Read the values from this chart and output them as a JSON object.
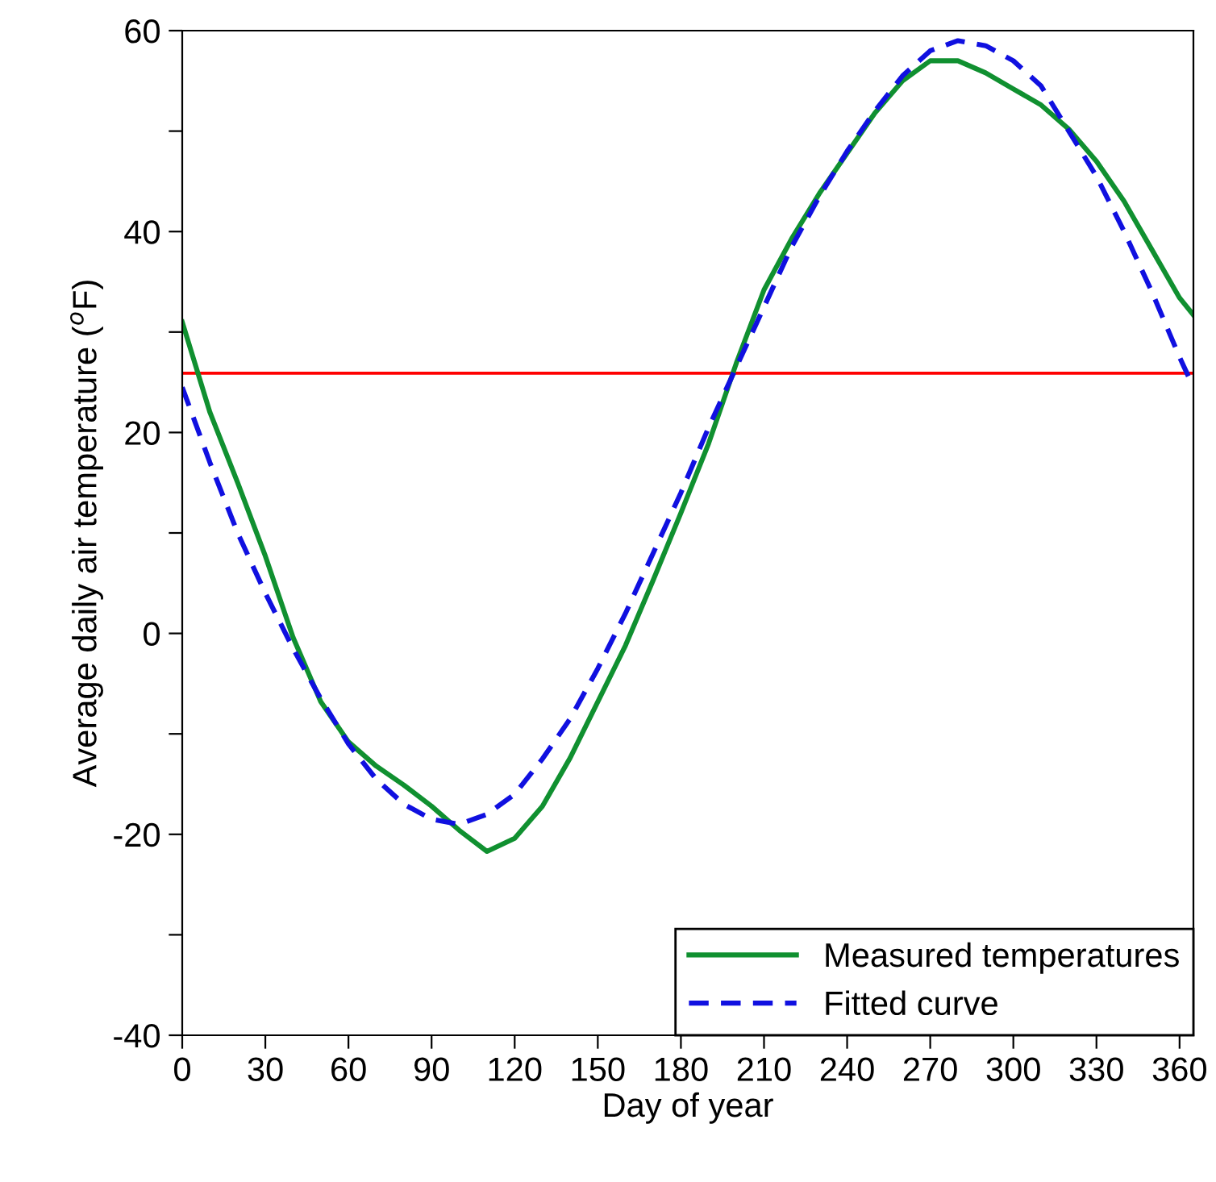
{
  "chart_data": {
    "type": "line",
    "xlabel": "Day of year",
    "ylabel": "Average daily air temperature ($^{o}$F)",
    "x": [
      0,
      10,
      20,
      30,
      40,
      50,
      60,
      70,
      80,
      90,
      100,
      110,
      120,
      130,
      140,
      150,
      160,
      170,
      180,
      190,
      200,
      210,
      220,
      230,
      240,
      250,
      260,
      270,
      280,
      290,
      300,
      310,
      320,
      330,
      340,
      350,
      360,
      365
    ],
    "series": [
      {
        "name": "Measured temperatures",
        "color": "#109030",
        "line_style": "solid",
        "values": [
          31,
          22,
          15,
          7.7,
          -0.4,
          -6.8,
          -10.8,
          -13.2,
          -15.1,
          -17.2,
          -19.6,
          -21.7,
          -20.4,
          -17.2,
          -12.4,
          -6.8,
          -1.2,
          5.3,
          12,
          18.9,
          26.9,
          34.2,
          39.3,
          43.8,
          47.8,
          51.8,
          55,
          57,
          57,
          55.8,
          54.2,
          52.6,
          50.2,
          47,
          43,
          38.2,
          33.4,
          31.7
        ]
      },
      {
        "name": "Fitted curve",
        "color": "#1010e0",
        "line_style": "dashed",
        "values": [
          24.5,
          17,
          10,
          4,
          -1.5,
          -6.5,
          -11,
          -14.5,
          -17,
          -18.5,
          -19,
          -18,
          -16,
          -12.5,
          -8.5,
          -3.5,
          2,
          8,
          14,
          20.5,
          26.5,
          32.5,
          38.5,
          43.5,
          48,
          52,
          55.5,
          58,
          59,
          58.5,
          57,
          54.5,
          50,
          45.5,
          40,
          34,
          27.5,
          24.5
        ]
      }
    ],
    "xlim": [
      0,
      365
    ],
    "xticks": [
      0,
      30,
      60,
      90,
      120,
      150,
      180,
      210,
      240,
      270,
      300,
      330,
      360
    ],
    "ylim": [
      -40,
      60
    ],
    "yticks": [
      -40,
      {
        "value": -30,
        "label": null
      },
      -20,
      {
        "value": -10,
        "label": null
      },
      0,
      {
        "value": 10,
        "label": null
      },
      20,
      {
        "value": 30,
        "label": null
      },
      40,
      {
        "value": 50,
        "label": null
      },
      60
    ],
    "ref_lines": [
      {
        "axis": "y",
        "value": 25.9,
        "color": "#ff0000",
        "line_style": "solid"
      }
    ],
    "grid": false,
    "legend": "bottom right",
    "marker": "none"
  }
}
